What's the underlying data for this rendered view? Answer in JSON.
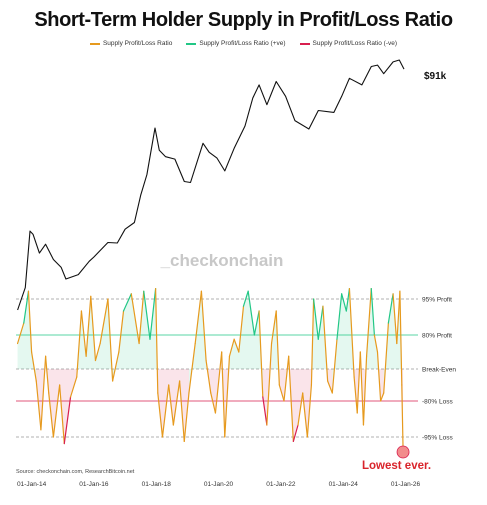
{
  "chart_data": {
    "type": "line",
    "title": "Short-Term Holder Supply in Profit/Loss Ratio",
    "legend": [
      {
        "name": "Supply Profit/Loss Ratio",
        "color": "#e69a1e"
      },
      {
        "name": "Supply Profit/Loss Ratio (+ve)",
        "color": "#22c786"
      },
      {
        "name": "Supply Profit/Loss Ratio (-ve)",
        "color": "#d81f4f"
      }
    ],
    "x_ticks": [
      "01-Jan-14",
      "01-Jan-16",
      "01-Jan-18",
      "01-Jan-20",
      "01-Jan-22",
      "01-Jan-24",
      "01-Jan-26"
    ],
    "x_range": [
      2013.5,
      2026.4
    ],
    "price_series": {
      "name": "Price",
      "scale": "log",
      "last_label": "$91k",
      "points": [
        [
          2013.55,
          95
        ],
        [
          2013.8,
          180
        ],
        [
          2013.95,
          900
        ],
        [
          2014.05,
          820
        ],
        [
          2014.25,
          480
        ],
        [
          2014.45,
          620
        ],
        [
          2014.7,
          400
        ],
        [
          2014.95,
          320
        ],
        [
          2015.1,
          230
        ],
        [
          2015.5,
          260
        ],
        [
          2015.85,
          380
        ],
        [
          2016.0,
          430
        ],
        [
          2016.45,
          650
        ],
        [
          2016.75,
          640
        ],
        [
          2017.0,
          950
        ],
        [
          2017.3,
          1150
        ],
        [
          2017.5,
          2500
        ],
        [
          2017.7,
          4500
        ],
        [
          2017.96,
          17000
        ],
        [
          2018.1,
          9000
        ],
        [
          2018.3,
          7500
        ],
        [
          2018.6,
          7000
        ],
        [
          2018.9,
          3700
        ],
        [
          2019.1,
          3600
        ],
        [
          2019.5,
          11000
        ],
        [
          2019.7,
          8500
        ],
        [
          2019.95,
          7200
        ],
        [
          2020.2,
          5000
        ],
        [
          2020.5,
          9500
        ],
        [
          2020.85,
          18000
        ],
        [
          2021.1,
          40000
        ],
        [
          2021.3,
          58000
        ],
        [
          2021.55,
          33000
        ],
        [
          2021.85,
          64000
        ],
        [
          2022.15,
          42000
        ],
        [
          2022.45,
          21000
        ],
        [
          2022.9,
          16500
        ],
        [
          2023.2,
          28000
        ],
        [
          2023.7,
          26500
        ],
        [
          2023.95,
          42000
        ],
        [
          2024.2,
          70000
        ],
        [
          2024.6,
          58000
        ],
        [
          2024.9,
          98000
        ],
        [
          2025.1,
          102000
        ],
        [
          2025.3,
          80000
        ],
        [
          2025.6,
          112000
        ],
        [
          2025.8,
          118000
        ],
        [
          2025.95,
          91000
        ]
      ]
    },
    "ratio_series": {
      "name": "Supply Profit/Loss Ratio",
      "levels": [
        {
          "value": 95,
          "label": "95% Profit",
          "color": "#999999",
          "style": "dashed"
        },
        {
          "value": 80,
          "label": "80% Profit",
          "color": "#22c786",
          "style": "solid"
        },
        {
          "value": 0,
          "label": "Break-Even",
          "color": "#999999",
          "style": "dashed"
        },
        {
          "value": -80,
          "label": "-80% Loss",
          "color": "#d81f4f",
          "style": "solid"
        },
        {
          "value": -95,
          "label": "-95% Loss",
          "color": "#999999",
          "style": "dashed"
        }
      ],
      "points": [
        [
          2013.55,
          60
        ],
        [
          2013.75,
          85
        ],
        [
          2013.9,
          98
        ],
        [
          2014.0,
          40
        ],
        [
          2014.15,
          -30
        ],
        [
          2014.3,
          -92
        ],
        [
          2014.45,
          30
        ],
        [
          2014.55,
          -60
        ],
        [
          2014.7,
          -95
        ],
        [
          2014.9,
          -40
        ],
        [
          2015.05,
          -98
        ],
        [
          2015.25,
          -70
        ],
        [
          2015.45,
          -20
        ],
        [
          2015.6,
          90
        ],
        [
          2015.75,
          30
        ],
        [
          2015.9,
          96
        ],
        [
          2016.05,
          20
        ],
        [
          2016.2,
          60
        ],
        [
          2016.45,
          95
        ],
        [
          2016.6,
          -30
        ],
        [
          2016.8,
          40
        ],
        [
          2016.95,
          90
        ],
        [
          2017.2,
          97
        ],
        [
          2017.45,
          60
        ],
        [
          2017.6,
          98
        ],
        [
          2017.8,
          70
        ],
        [
          2017.98,
          99
        ],
        [
          2018.05,
          -60
        ],
        [
          2018.2,
          -95
        ],
        [
          2018.4,
          -40
        ],
        [
          2018.55,
          -90
        ],
        [
          2018.75,
          -30
        ],
        [
          2018.9,
          -97
        ],
        [
          2019.05,
          -60
        ],
        [
          2019.25,
          60
        ],
        [
          2019.45,
          98
        ],
        [
          2019.6,
          20
        ],
        [
          2019.75,
          -60
        ],
        [
          2019.9,
          -85
        ],
        [
          2020.1,
          40
        ],
        [
          2020.2,
          -95
        ],
        [
          2020.35,
          30
        ],
        [
          2020.5,
          70
        ],
        [
          2020.65,
          40
        ],
        [
          2020.8,
          92
        ],
        [
          2020.95,
          98
        ],
        [
          2021.15,
          80
        ],
        [
          2021.3,
          90
        ],
        [
          2021.42,
          -70
        ],
        [
          2021.55,
          -90
        ],
        [
          2021.7,
          60
        ],
        [
          2021.85,
          90
        ],
        [
          2021.95,
          -40
        ],
        [
          2022.1,
          -80
        ],
        [
          2022.25,
          30
        ],
        [
          2022.4,
          -97
        ],
        [
          2022.55,
          -90
        ],
        [
          2022.7,
          -60
        ],
        [
          2022.85,
          -95
        ],
        [
          2022.98,
          -40
        ],
        [
          2023.05,
          95
        ],
        [
          2023.2,
          70
        ],
        [
          2023.35,
          92
        ],
        [
          2023.5,
          -30
        ],
        [
          2023.65,
          -60
        ],
        [
          2023.8,
          70
        ],
        [
          2023.95,
          97
        ],
        [
          2024.1,
          90
        ],
        [
          2024.2,
          99
        ],
        [
          2024.35,
          -20
        ],
        [
          2024.45,
          -85
        ],
        [
          2024.55,
          40
        ],
        [
          2024.65,
          -90
        ],
        [
          2024.75,
          30
        ],
        [
          2024.9,
          99
        ],
        [
          2025.0,
          80
        ],
        [
          2025.1,
          40
        ],
        [
          2025.2,
          -80
        ],
        [
          2025.3,
          -60
        ],
        [
          2025.45,
          85
        ],
        [
          2025.6,
          97
        ],
        [
          2025.72,
          60
        ],
        [
          2025.82,
          98
        ],
        [
          2025.88,
          -40
        ],
        [
          2025.92,
          -100
        ]
      ]
    },
    "watermark": "_checkonchain",
    "source": "Source: checkonchain.com, ResearchBitcoin.net",
    "annotation": "Lowest ever."
  }
}
